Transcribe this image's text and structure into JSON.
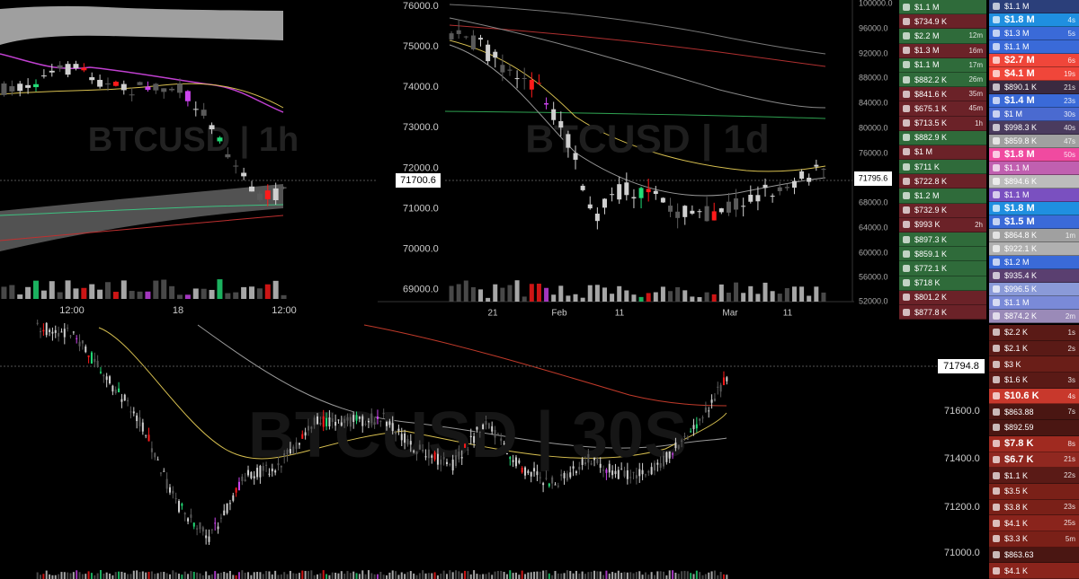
{
  "panels": [
    {
      "watermark": "BTCUSD | 1h",
      "xticks": [
        "12:00",
        "18",
        "12:00"
      ]
    },
    {
      "watermark": "BTCUSD | 1d",
      "yticks": [
        "76000.0",
        "75000.0",
        "74000.0",
        "73000.0",
        "72000.0",
        "71000.0",
        "70000.0",
        "69000.0"
      ],
      "price_label": "71700.6",
      "right_ticks": [
        "100000.0",
        "96000.0",
        "92000.0",
        "88000.0",
        "84000.0",
        "80000.0",
        "76000.0",
        "68000.0",
        "64000.0",
        "60000.0",
        "56000.0",
        "52000.0"
      ],
      "right_label": "71795.6",
      "xticks": [
        "21",
        "Feb",
        "11",
        "Mar",
        "11"
      ]
    },
    {
      "watermark": "BTCUSD | 30S",
      "yticks": [
        "71600.0",
        "71400.0",
        "71200.0",
        "71000.0"
      ],
      "price_label": "71794.8"
    }
  ],
  "list_left": [
    {
      "amount": "$1.1 M",
      "color": "#2f6b3a"
    },
    {
      "amount": "$734.9 K",
      "color": "#6b2228"
    },
    {
      "amount": "$2.2 M",
      "time": "12m",
      "color": "#2f6b3a"
    },
    {
      "amount": "$1.3 M",
      "time": "16m",
      "color": "#6b2228"
    },
    {
      "amount": "$1.1 M",
      "time": "17m",
      "color": "#2f6b3a"
    },
    {
      "amount": "$882.2 K",
      "time": "26m",
      "color": "#2f6b3a"
    },
    {
      "amount": "$841.6 K",
      "time": "35m",
      "color": "#6b2228"
    },
    {
      "amount": "$675.1 K",
      "time": "45m",
      "color": "#6b2228"
    },
    {
      "amount": "$713.5 K",
      "time": "1h",
      "color": "#6b2228"
    },
    {
      "amount": "$882.9 K",
      "color": "#2f6b3a"
    },
    {
      "amount": "$1 M",
      "color": "#6b2228"
    },
    {
      "amount": "$711 K",
      "color": "#2f6b3a"
    },
    {
      "amount": "$722.8 K",
      "color": "#6b2228"
    },
    {
      "amount": "$1.2 M",
      "color": "#2f6b3a"
    },
    {
      "amount": "$732.9 K",
      "color": "#6b2228"
    },
    {
      "amount": "$993 K",
      "time": "2h",
      "color": "#6b2228"
    },
    {
      "amount": "$897.3 K",
      "color": "#2f6b3a"
    },
    {
      "amount": "$859.1 K",
      "color": "#2f6b3a"
    },
    {
      "amount": "$772.1 K",
      "color": "#2f6b3a"
    },
    {
      "amount": "$718 K",
      "color": "#2f6b3a"
    },
    {
      "amount": "$801.2 K",
      "color": "#6b2228"
    },
    {
      "amount": "$877.8 K",
      "color": "#6b2228"
    }
  ],
  "list_right": [
    {
      "amount": "$1.1 M",
      "color": "#2b3f7a"
    },
    {
      "amount": "$1.8 M",
      "time": "4s",
      "color": "#1f8fe0",
      "big": true
    },
    {
      "amount": "$1.3 M",
      "time": "5s",
      "color": "#3a6ad8"
    },
    {
      "amount": "$1.1 M",
      "color": "#3a6ad8"
    },
    {
      "amount": "$2.7 M",
      "time": "6s",
      "color": "#f0463a",
      "big": true
    },
    {
      "amount": "$4.1 M",
      "time": "19s",
      "color": "#f0463a",
      "big": true
    },
    {
      "amount": "$890.1 K",
      "time": "21s",
      "color": "#3a2a40"
    },
    {
      "amount": "$1.4 M",
      "time": "23s",
      "color": "#3a6ad8",
      "big": true
    },
    {
      "amount": "$1 M",
      "time": "30s",
      "color": "#4a6ad0"
    },
    {
      "amount": "$998.3 K",
      "time": "40s",
      "color": "#4a3b5e"
    },
    {
      "amount": "$859.8 K",
      "time": "47s",
      "color": "#a0a0a0"
    },
    {
      "amount": "$1.8 M",
      "time": "50s",
      "color": "#f04aa0",
      "big": true
    },
    {
      "amount": "$1.1 M",
      "color": "#c060b0"
    },
    {
      "amount": "$894.6 K",
      "color": "#bcbcbc"
    },
    {
      "amount": "$1.1 M",
      "color": "#7a50c0"
    },
    {
      "amount": "$1.8 M",
      "color": "#1f8fe0",
      "big": true
    },
    {
      "amount": "$1.5 M",
      "color": "#3a6ad8",
      "big": true
    },
    {
      "amount": "$864.8 K",
      "time": "1m",
      "color": "#a0a0a0"
    },
    {
      "amount": "$922.1 K",
      "color": "#b0b0b0"
    },
    {
      "amount": "$1.2 M",
      "color": "#3a6ad8"
    },
    {
      "amount": "$935.4 K",
      "color": "#5a3f70"
    },
    {
      "amount": "$996.5 K",
      "color": "#8a9ad8"
    },
    {
      "amount": "$1.1 M",
      "color": "#7a8ad8"
    },
    {
      "amount": "$874.2 K",
      "time": "2m",
      "color": "#9a8ab8"
    }
  ],
  "list_bottom": [
    {
      "amount": "$2.2 K",
      "time": "1s",
      "color": "#5a1a16"
    },
    {
      "amount": "$2.1 K",
      "time": "2s",
      "color": "#5a1a16"
    },
    {
      "amount": "$3 K",
      "color": "#6a1e18"
    },
    {
      "amount": "$1.6 K",
      "time": "3s",
      "color": "#5a1a16"
    },
    {
      "amount": "$10.6 K",
      "time": "4s",
      "color": "#c8382c",
      "big": true
    },
    {
      "amount": "$863.88",
      "time": "7s",
      "color": "#4a1612"
    },
    {
      "amount": "$892.59",
      "color": "#4a1612"
    },
    {
      "amount": "$7.8 K",
      "time": "8s",
      "color": "#a02a20",
      "big": true
    },
    {
      "amount": "$6.7 K",
      "time": "21s",
      "color": "#902820",
      "big": true
    },
    {
      "amount": "$1.1 K",
      "time": "22s",
      "color": "#5a1a16"
    },
    {
      "amount": "$3.5 K",
      "color": "#7a2018"
    },
    {
      "amount": "$3.8 K",
      "time": "23s",
      "color": "#7a2018"
    },
    {
      "amount": "$4.1 K",
      "time": "25s",
      "color": "#8a241c"
    },
    {
      "amount": "$3.3 K",
      "time": "5m",
      "color": "#7a2018"
    },
    {
      "amount": "$863.63",
      "color": "#4a1612"
    },
    {
      "amount": "$4.1 K",
      "color": "#8a241c"
    }
  ]
}
